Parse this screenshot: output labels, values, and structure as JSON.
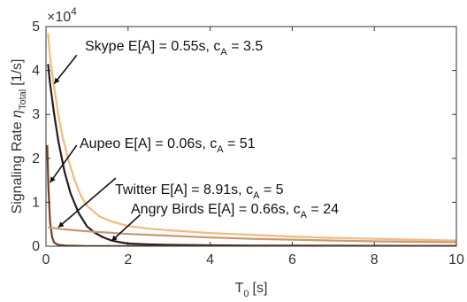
{
  "chart_data": {
    "type": "line",
    "title": "",
    "xlabel": {
      "main": "T",
      "sub": "0",
      "unit": "[s]"
    },
    "ylabel": {
      "main": "Signaling Rate ",
      "greek": "η",
      "sub": "Total",
      "unit": "[1/s]"
    },
    "y_exponent": {
      "base": "×10",
      "power": "4"
    },
    "xlim": [
      0,
      10
    ],
    "ylim": [
      0,
      5
    ],
    "x_ticks": [
      "0",
      "2",
      "4",
      "6",
      "8",
      "10"
    ],
    "y_ticks": [
      "0",
      "1",
      "2",
      "3",
      "4",
      "5"
    ],
    "grid": false,
    "series": [
      {
        "color": "#f5b97a",
        "x": [
          0.05,
          0.1,
          0.2,
          0.3,
          0.4,
          0.55,
          0.7,
          0.85,
          1.0,
          1.3,
          1.6,
          2.0,
          2.5,
          3,
          4,
          5,
          6,
          7,
          8,
          9,
          10
        ],
        "y": [
          4.85,
          4.3,
          3.6,
          3.0,
          2.5,
          1.95,
          1.5,
          1.15,
          0.92,
          0.68,
          0.56,
          0.46,
          0.4,
          0.36,
          0.3,
          0.26,
          0.22,
          0.19,
          0.17,
          0.15,
          0.13
        ]
      },
      {
        "color": "#2a1a1a",
        "x": [
          0.05,
          0.1,
          0.2,
          0.3,
          0.45,
          0.6,
          0.8,
          1.0,
          1.2,
          1.4,
          1.6,
          1.8,
          2.0,
          2.5,
          3,
          4,
          5,
          6,
          7,
          8,
          9,
          10
        ],
        "y": [
          4.15,
          3.7,
          3.0,
          2.4,
          1.7,
          1.2,
          0.75,
          0.45,
          0.3,
          0.2,
          0.13,
          0.09,
          0.06,
          0.04,
          0.03,
          0.02,
          0.015,
          0.012,
          0.01,
          0.008,
          0.007,
          0.006
        ]
      },
      {
        "color": "#7a3e22",
        "x": [
          0.03,
          0.06,
          0.1,
          0.15,
          0.2,
          0.3,
          0.5,
          1,
          2,
          4,
          6,
          8,
          10
        ],
        "y": [
          2.3,
          1.3,
          0.55,
          0.2,
          0.08,
          0.03,
          0.012,
          0.005,
          0.003,
          0.002,
          0.0015,
          0.001,
          0.001
        ]
      },
      {
        "color": "#c49a77",
        "x": [
          0.05,
          0.3,
          0.6,
          1,
          1.5,
          2,
          3,
          4,
          5,
          6,
          7,
          8,
          9,
          10
        ],
        "y": [
          0.43,
          0.4,
          0.37,
          0.34,
          0.31,
          0.28,
          0.24,
          0.2,
          0.17,
          0.15,
          0.13,
          0.11,
          0.1,
          0.09
        ]
      }
    ],
    "annotations": [
      {
        "text": "Skype E[A] = 0.55s, c",
        "sub": "A",
        "rest": " = 3.5",
        "color": "#111111",
        "tip": [
          0.2,
          3.7
        ],
        "tail": [
          0.75,
          4.35
        ]
      },
      {
        "text": "Aupeo E[A] = 0.06s, c",
        "sub": "A",
        "rest": " = 51",
        "color": "#111111",
        "tip": [
          0.1,
          1.45
        ],
        "tail": [
          0.75,
          2.3
        ]
      },
      {
        "text": "Twitter E[A] = 8.91s, c",
        "sub": "A",
        "rest": " = 5",
        "color": "#111111",
        "tip": [
          0.3,
          0.43
        ],
        "tail": [
          1.7,
          1.55
        ]
      },
      {
        "text": "Angry Birds E[A] = 0.66s, c",
        "sub": "A",
        "rest": " = 24",
        "color": "#111111",
        "tip": [
          1.6,
          0.12
        ],
        "tail": [
          2.3,
          0.72
        ]
      }
    ]
  }
}
